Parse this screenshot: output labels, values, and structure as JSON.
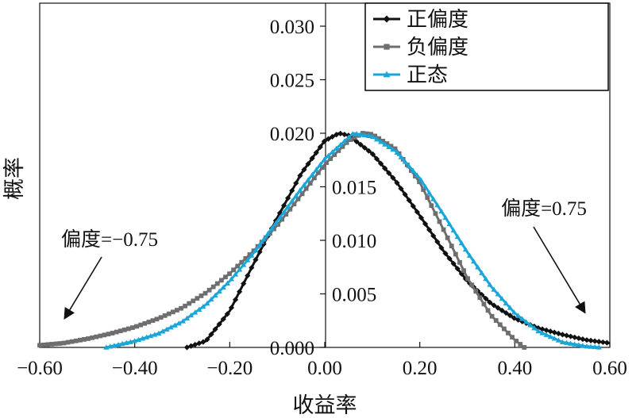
{
  "chart_data": {
    "type": "line",
    "title": "",
    "xlabel": "收益率",
    "ylabel": "概率",
    "xlim": [
      -0.6,
      0.6
    ],
    "ylim": [
      0,
      0.032
    ],
    "x_ticks": [
      -0.6,
      -0.4,
      -0.2,
      0.0,
      0.2,
      0.4,
      0.6
    ],
    "x_tick_labels": [
      "−0.60",
      "−0.40",
      "−0.20",
      "0.00",
      "0.20",
      "0.40",
      "0.60"
    ],
    "y_ticks": [
      0.0,
      0.005,
      0.01,
      0.015,
      0.02,
      0.025,
      0.03
    ],
    "y_tick_labels": [
      "0.000",
      "0.005",
      "0.010",
      "0.015",
      "0.020",
      "0.025",
      "0.030"
    ],
    "legend_position": "top-right",
    "grid": false,
    "series": [
      {
        "name": "正偏度",
        "color": "#111111",
        "marker": "diamond",
        "x": [
          -0.29,
          -0.25,
          -0.2,
          -0.15,
          -0.1,
          -0.05,
          0.0,
          0.03,
          0.05,
          0.1,
          0.15,
          0.2,
          0.25,
          0.3,
          0.35,
          0.4,
          0.45,
          0.5,
          0.55,
          0.6
        ],
        "y": [
          0.0,
          0.0006,
          0.0034,
          0.0078,
          0.0121,
          0.0162,
          0.0193,
          0.02,
          0.0198,
          0.0181,
          0.0155,
          0.0123,
          0.009,
          0.0062,
          0.0041,
          0.0027,
          0.0018,
          0.0012,
          0.0007,
          0.0004
        ]
      },
      {
        "name": "负偏度",
        "color": "#6e6e6e",
        "marker": "square",
        "x": [
          -0.6,
          -0.55,
          -0.5,
          -0.45,
          -0.4,
          -0.35,
          -0.3,
          -0.25,
          -0.2,
          -0.15,
          -0.1,
          -0.05,
          0.0,
          0.05,
          0.08,
          0.1,
          0.15,
          0.2,
          0.25,
          0.3,
          0.35,
          0.4,
          0.42
        ],
        "y": [
          0.0002,
          0.0004,
          0.0008,
          0.0013,
          0.0019,
          0.0027,
          0.0037,
          0.0051,
          0.0069,
          0.009,
          0.0114,
          0.0142,
          0.0171,
          0.0193,
          0.02,
          0.0199,
          0.0185,
          0.0154,
          0.011,
          0.0065,
          0.003,
          0.0007,
          0.0
        ]
      },
      {
        "name": "正态",
        "color": "#1aa6d8",
        "marker": "triangle",
        "x": [
          -0.46,
          -0.4,
          -0.35,
          -0.3,
          -0.25,
          -0.2,
          -0.15,
          -0.1,
          -0.05,
          0.0,
          0.06,
          0.1,
          0.15,
          0.2,
          0.25,
          0.3,
          0.35,
          0.4,
          0.45,
          0.5,
          0.55,
          0.58
        ],
        "y": [
          0.0,
          0.0006,
          0.0013,
          0.0024,
          0.004,
          0.0062,
          0.0088,
          0.0118,
          0.0148,
          0.0176,
          0.02,
          0.0197,
          0.0183,
          0.0158,
          0.0124,
          0.0089,
          0.0057,
          0.0032,
          0.0015,
          0.0005,
          0.0001,
          0.0
        ]
      }
    ],
    "annotations": [
      {
        "text": "偏度=−0.75",
        "arrow_to": [
          -0.55,
          0.001
        ]
      },
      {
        "text": "偏度=0.75",
        "arrow_to": [
          0.55,
          0.0011
        ]
      }
    ]
  }
}
